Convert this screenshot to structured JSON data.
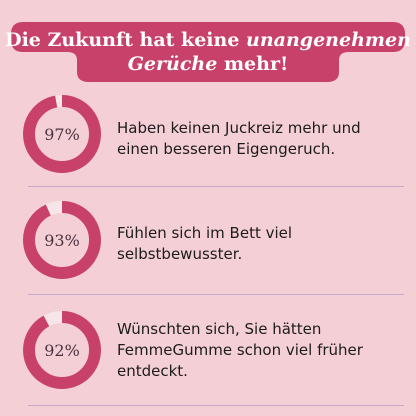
{
  "header": {
    "line1": "Die Zukunft hat keine",
    "line1_italic": "unangenehmen",
    "line2_italic": "Gerüche",
    "line2_rest": "mehr!",
    "banner_color": "#c8416b"
  },
  "stats": [
    {
      "percent": 97,
      "label": "97%",
      "text": "Haben keinen Juckreiz mehr und einen besseren Eigengeruch."
    },
    {
      "percent": 93,
      "label": "93%",
      "text": "Fühlen sich im Bett viel selbstbewusster."
    },
    {
      "percent": 92,
      "label": "92%",
      "text": "Wünschten sich, Sie hätten FemmeGumme schon viel früher entdeckt."
    }
  ],
  "colors": {
    "ring_filled": "#c8416b",
    "ring_remaining": "#f7e6e9",
    "background": "#f5cfd6",
    "divider": "#c9a9c9"
  }
}
